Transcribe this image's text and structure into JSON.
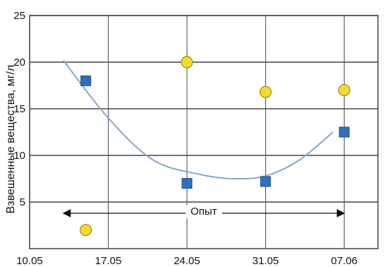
{
  "chart_data": {
    "type": "scatter",
    "title": "",
    "xlabel": "",
    "ylabel": "Взвешенные вещества, мг/л",
    "x_ticks": [
      "10.05",
      "17.05",
      "24.05",
      "31.05",
      "07.06"
    ],
    "y_ticks": [
      "5",
      "10",
      "15",
      "20",
      "25"
    ],
    "xlim": [
      "2005-05-10",
      "2005-06-10"
    ],
    "ylim": [
      0,
      25
    ],
    "grid": true,
    "series": [
      {
        "marker": "square",
        "color": "#2f6fbf",
        "points": [
          {
            "x": "2005-05-15",
            "y": 18
          },
          {
            "x": "2005-05-24",
            "y": 7
          },
          {
            "x": "2005-05-31",
            "y": 7.2
          },
          {
            "x": "2005-06-07",
            "y": 12.5
          }
        ]
      },
      {
        "marker": "circle",
        "color": "#f2dc2a",
        "points": [
          {
            "x": "2005-05-15",
            "y": 2
          },
          {
            "x": "2005-05-24",
            "y": 20
          },
          {
            "x": "2005-05-31",
            "y": 16.8
          },
          {
            "x": "2005-06-07",
            "y": 17
          }
        ]
      }
    ],
    "trend_curve": [
      {
        "x": "2005-05-13",
        "y": 20.2
      },
      {
        "x": "2005-05-17",
        "y": 14
      },
      {
        "x": "2005-05-21",
        "y": 9.5
      },
      {
        "x": "2005-05-25",
        "y": 8
      },
      {
        "x": "2005-05-28",
        "y": 7.5
      },
      {
        "x": "2005-05-31",
        "y": 7.8
      },
      {
        "x": "2005-06-03",
        "y": 9.5
      },
      {
        "x": "2005-06-06",
        "y": 12.5
      }
    ],
    "annotation": {
      "text": "Опыт",
      "x_start": "2005-05-13",
      "x_end": "2005-06-07",
      "y": 3.8
    }
  }
}
